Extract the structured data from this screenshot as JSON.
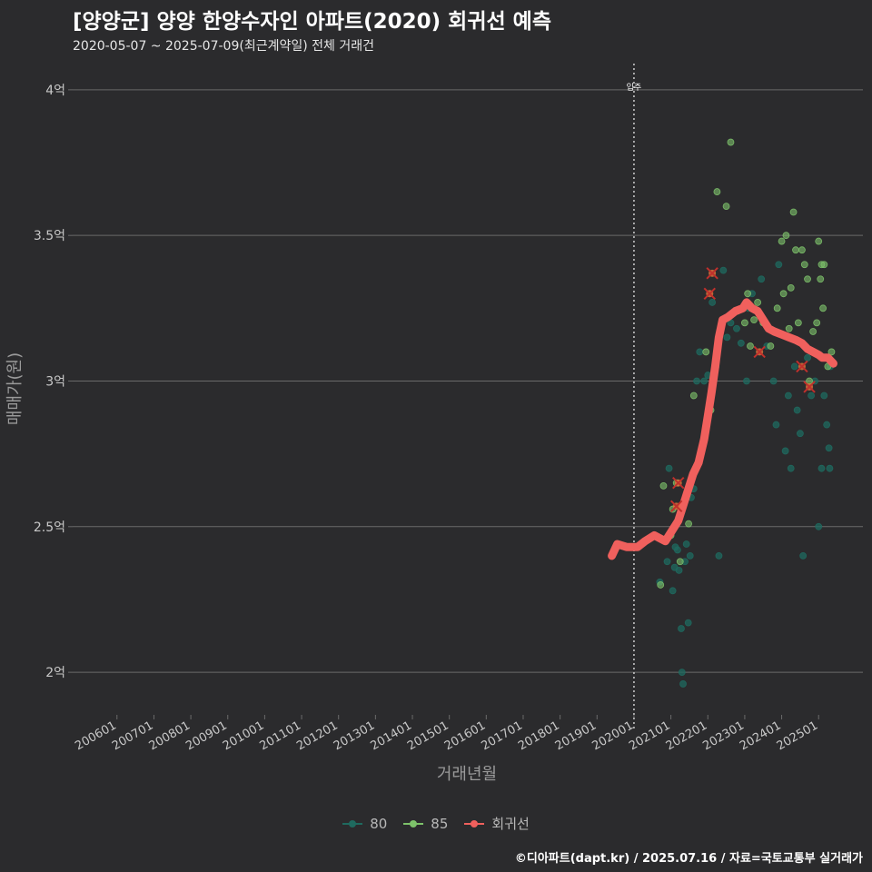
{
  "chart_data": {
    "type": "scatter",
    "title": "[양양군] 양양 한양수자인 아파트(2020) 회귀선 예측",
    "subtitle": "2020-05-07 ~ 2025-07-09(최근계약일) 전체 거래건",
    "xlabel": "거래년월",
    "ylabel": "매매가(원)",
    "x_ticks": [
      "200601",
      "200701",
      "200801",
      "200901",
      "201001",
      "201101",
      "201201",
      "201301",
      "201401",
      "201501",
      "201601",
      "201701",
      "201801",
      "201901",
      "202001",
      "202101",
      "202201",
      "202301",
      "202401",
      "202501"
    ],
    "y_ticks": [
      {
        "value": 2.0,
        "label": "2억"
      },
      {
        "value": 2.5,
        "label": "2.5억"
      },
      {
        "value": 3.0,
        "label": "3억"
      },
      {
        "value": 3.5,
        "label": "3.5억"
      },
      {
        "value": 4.0,
        "label": "4억"
      }
    ],
    "ylim": [
      1.86,
      4.09
    ],
    "xlim": [
      2004.8,
      2026.2
    ],
    "move_in_line": {
      "x": 2020.0,
      "label": "입주"
    },
    "colors": {
      "80": "#1f6a5f",
      "85": "#7dc26a",
      "regression": "#f0605d",
      "grid": "#6a6a6a",
      "axis_text": "#c8c8c8"
    },
    "series": [
      {
        "name": "80",
        "points": [
          [
            2020.7,
            2.31
          ],
          [
            2020.9,
            2.38
          ],
          [
            2020.95,
            2.7
          ],
          [
            2021.05,
            2.28
          ],
          [
            2021.1,
            2.36
          ],
          [
            2021.12,
            2.43
          ],
          [
            2021.18,
            2.42
          ],
          [
            2021.22,
            2.35
          ],
          [
            2021.28,
            2.15
          ],
          [
            2021.3,
            2.0
          ],
          [
            2021.33,
            1.96
          ],
          [
            2021.38,
            2.38
          ],
          [
            2021.42,
            2.44
          ],
          [
            2021.47,
            2.17
          ],
          [
            2021.52,
            2.4
          ],
          [
            2021.55,
            2.6
          ],
          [
            2021.62,
            2.63
          ],
          [
            2021.7,
            3.0
          ],
          [
            2021.78,
            3.1
          ],
          [
            2021.9,
            3.0
          ],
          [
            2022.0,
            3.02
          ],
          [
            2022.12,
            3.27
          ],
          [
            2022.22,
            3.05
          ],
          [
            2022.3,
            2.4
          ],
          [
            2022.42,
            3.38
          ],
          [
            2022.52,
            3.15
          ],
          [
            2022.62,
            3.2
          ],
          [
            2022.78,
            3.18
          ],
          [
            2022.9,
            3.13
          ],
          [
            2023.05,
            3.0
          ],
          [
            2023.1,
            3.25
          ],
          [
            2023.2,
            3.3
          ],
          [
            2023.45,
            3.35
          ],
          [
            2023.6,
            3.12
          ],
          [
            2023.78,
            3.0
          ],
          [
            2023.85,
            2.85
          ],
          [
            2023.92,
            3.4
          ],
          [
            2024.1,
            2.76
          ],
          [
            2024.18,
            2.95
          ],
          [
            2024.25,
            2.7
          ],
          [
            2024.35,
            3.05
          ],
          [
            2024.42,
            2.9
          ],
          [
            2024.5,
            2.82
          ],
          [
            2024.58,
            2.4
          ],
          [
            2024.7,
            3.08
          ],
          [
            2024.8,
            2.95
          ],
          [
            2024.9,
            3.0
          ],
          [
            2025.0,
            2.5
          ],
          [
            2025.08,
            2.7
          ],
          [
            2025.15,
            2.95
          ],
          [
            2025.22,
            2.85
          ],
          [
            2025.28,
            2.77
          ],
          [
            2025.3,
            2.7
          ],
          [
            2025.32,
            3.05
          ]
        ]
      },
      {
        "name": "85",
        "points": [
          [
            2020.72,
            2.3
          ],
          [
            2020.8,
            2.64
          ],
          [
            2021.0,
            2.47
          ],
          [
            2021.05,
            2.56
          ],
          [
            2021.15,
            2.65
          ],
          [
            2021.25,
            2.38
          ],
          [
            2021.48,
            2.51
          ],
          [
            2021.62,
            2.95
          ],
          [
            2021.95,
            3.1
          ],
          [
            2022.08,
            2.9
          ],
          [
            2022.25,
            3.65
          ],
          [
            2022.5,
            3.6
          ],
          [
            2022.62,
            3.82
          ],
          [
            2022.8,
            3.24
          ],
          [
            2023.0,
            3.2
          ],
          [
            2023.08,
            3.3
          ],
          [
            2023.15,
            3.12
          ],
          [
            2023.25,
            3.21
          ],
          [
            2023.35,
            3.27
          ],
          [
            2023.5,
            3.2
          ],
          [
            2023.7,
            3.12
          ],
          [
            2023.88,
            3.25
          ],
          [
            2024.0,
            3.48
          ],
          [
            2024.05,
            3.3
          ],
          [
            2024.12,
            3.5
          ],
          [
            2024.2,
            3.18
          ],
          [
            2024.25,
            3.32
          ],
          [
            2024.32,
            3.58
          ],
          [
            2024.38,
            3.45
          ],
          [
            2024.45,
            3.2
          ],
          [
            2024.55,
            3.45
          ],
          [
            2024.62,
            3.4
          ],
          [
            2024.7,
            3.35
          ],
          [
            2024.75,
            3.0
          ],
          [
            2024.85,
            3.17
          ],
          [
            2024.95,
            3.2
          ],
          [
            2025.0,
            3.48
          ],
          [
            2025.05,
            3.35
          ],
          [
            2025.08,
            3.4
          ],
          [
            2025.12,
            3.25
          ],
          [
            2025.15,
            3.4
          ],
          [
            2025.25,
            3.05
          ],
          [
            2025.35,
            3.1
          ]
        ]
      },
      {
        "name": "회귀선",
        "points": [
          [
            2019.4,
            2.4
          ],
          [
            2019.55,
            2.44
          ],
          [
            2019.8,
            2.43
          ],
          [
            2020.1,
            2.43
          ],
          [
            2020.3,
            2.45
          ],
          [
            2020.55,
            2.47
          ],
          [
            2020.85,
            2.45
          ],
          [
            2021.0,
            2.48
          ],
          [
            2021.2,
            2.52
          ],
          [
            2021.4,
            2.6
          ],
          [
            2021.6,
            2.68
          ],
          [
            2021.75,
            2.72
          ],
          [
            2021.9,
            2.8
          ],
          [
            2022.0,
            2.88
          ],
          [
            2022.1,
            2.96
          ],
          [
            2022.2,
            3.05
          ],
          [
            2022.3,
            3.15
          ],
          [
            2022.4,
            3.21
          ],
          [
            2022.55,
            3.22
          ],
          [
            2022.75,
            3.24
          ],
          [
            2022.95,
            3.25
          ],
          [
            2023.05,
            3.27
          ],
          [
            2023.2,
            3.25
          ],
          [
            2023.35,
            3.24
          ],
          [
            2023.5,
            3.21
          ],
          [
            2023.65,
            3.18
          ],
          [
            2023.8,
            3.17
          ],
          [
            2024.0,
            3.16
          ],
          [
            2024.2,
            3.15
          ],
          [
            2024.4,
            3.14
          ],
          [
            2024.55,
            3.13
          ],
          [
            2024.7,
            3.11
          ],
          [
            2024.85,
            3.1
          ],
          [
            2025.0,
            3.09
          ],
          [
            2025.1,
            3.08
          ],
          [
            2025.25,
            3.08
          ],
          [
            2025.4,
            3.06
          ]
        ]
      }
    ],
    "marked_points": [
      [
        2021.15,
        2.57
      ],
      [
        2021.2,
        2.65
      ],
      [
        2022.05,
        3.3
      ],
      [
        2022.12,
        3.37
      ],
      [
        2023.4,
        3.1
      ],
      [
        2024.55,
        3.05
      ],
      [
        2024.75,
        2.98
      ]
    ],
    "legend": [
      "80",
      "85",
      "회귀선"
    ],
    "legend_position": "bottom"
  },
  "caption": "©디아파트(dapt.kr) / 2025.07.16 / 자료=국토교통부 실거래가"
}
